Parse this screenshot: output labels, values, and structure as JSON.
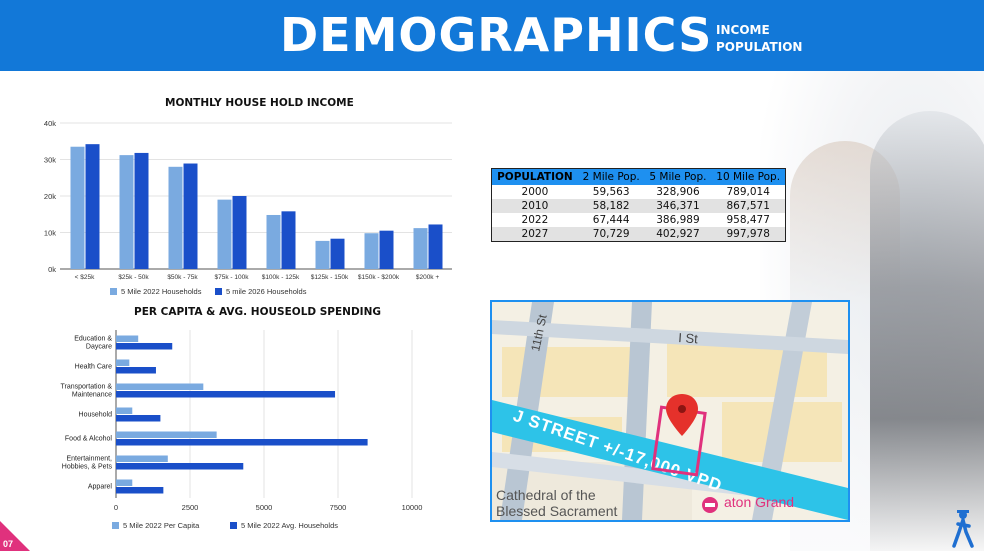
{
  "header": {
    "title": "DEMOGRAPHICS",
    "sub1": "INCOME",
    "sub2": "POPULATION"
  },
  "income_chart": {
    "title": "MONTHLY HOUSE HOLD INCOME",
    "y_ticks": [
      "0k",
      "10k",
      "20k",
      "30k",
      "40k"
    ],
    "legend": [
      "5 Mile 2022 Households",
      "5 mile 2026 Households"
    ]
  },
  "spending_chart": {
    "title": "PER CAPITA & AVG. HOUSEOLD SPENDING",
    "x_ticks": [
      "0",
      "2500",
      "5000",
      "7500",
      "10000"
    ],
    "legend": [
      "5 Mile 2022 Per Capita",
      "5 Mile 2022 Avg. Households"
    ]
  },
  "chart_data": [
    {
      "type": "bar",
      "title": "MONTHLY HOUSE HOLD INCOME",
      "categories": [
        "< $25k",
        "$25k - 50k",
        "$50k - 75k",
        "$75k - 100k",
        "$100k - 125k",
        "$125k - 150k",
        "$150k - $200k",
        "$200k +"
      ],
      "series": [
        {
          "name": "5 Mile 2022 Households",
          "values": [
            33500,
            31200,
            28000,
            19000,
            14800,
            7700,
            9800,
            11200
          ]
        },
        {
          "name": "5 mile 2026 Households",
          "values": [
            34200,
            31800,
            28900,
            20000,
            15800,
            8300,
            10500,
            12200
          ]
        }
      ],
      "ylim": [
        0,
        40000
      ],
      "colors": [
        "#7aaae0",
        "#1a4fc9"
      ],
      "grid": true,
      "legend": "bottom"
    },
    {
      "type": "bar",
      "orientation": "horizontal",
      "title": "PER CAPITA & AVG. HOUSEOLD SPENDING",
      "categories": [
        "Education & Daycare",
        "Health Care",
        "Transportation & Maintenance",
        "Household",
        "Food & Alcohol",
        "Entertainment, Hobbies, & Pets",
        "Apparel"
      ],
      "category_lines": [
        [
          "Education &",
          "Daycare"
        ],
        [
          "Health Care"
        ],
        [
          "Transportation &",
          "Maintenance"
        ],
        [
          "Household"
        ],
        [
          "Food & Alcohol"
        ],
        [
          "Entertainment,",
          "Hobbies, & Pets"
        ],
        [
          "Apparel"
        ]
      ],
      "series": [
        {
          "name": "5 Mile 2022 Per Capita",
          "values": [
            750,
            450,
            2950,
            550,
            3400,
            1750,
            550
          ]
        },
        {
          "name": "5 Mile 2022 Avg. Households",
          "values": [
            1900,
            1350,
            7400,
            1500,
            8500,
            4300,
            1600
          ]
        }
      ],
      "xlim": [
        0,
        10000
      ],
      "colors": [
        "#7aaae0",
        "#1a4fc9"
      ],
      "grid": true,
      "legend": "bottom"
    },
    {
      "type": "table",
      "columns": [
        "POPULATION",
        "2 Mile Pop.",
        "5 Mile Pop.",
        "10 Mile Pop."
      ],
      "rows": [
        [
          "2000",
          "59,563",
          "328,906",
          "789,014"
        ],
        [
          "2010",
          "58,182",
          "346,371",
          "867,571"
        ],
        [
          "2022",
          "67,444",
          "386,989",
          "958,477"
        ],
        [
          "2027",
          "70,729",
          "402,927",
          "997,978"
        ]
      ]
    }
  ],
  "map": {
    "street_11th": "11th St",
    "street_i": "I St",
    "street_j": "J STREET +/-17,000 VPD",
    "poi_cathedral_1": "Cathedral of the",
    "poi_cathedral_2": "Blessed Sacrament",
    "poi_hotel": "aton Grand",
    "accent_color": "#e0317d",
    "highlight_color": "#2dc3e8"
  },
  "page_number": "07",
  "icons": {
    "pin": "map-pin-icon",
    "hotel": "hotel-icon",
    "logo": "walking-person-logo-icon"
  }
}
